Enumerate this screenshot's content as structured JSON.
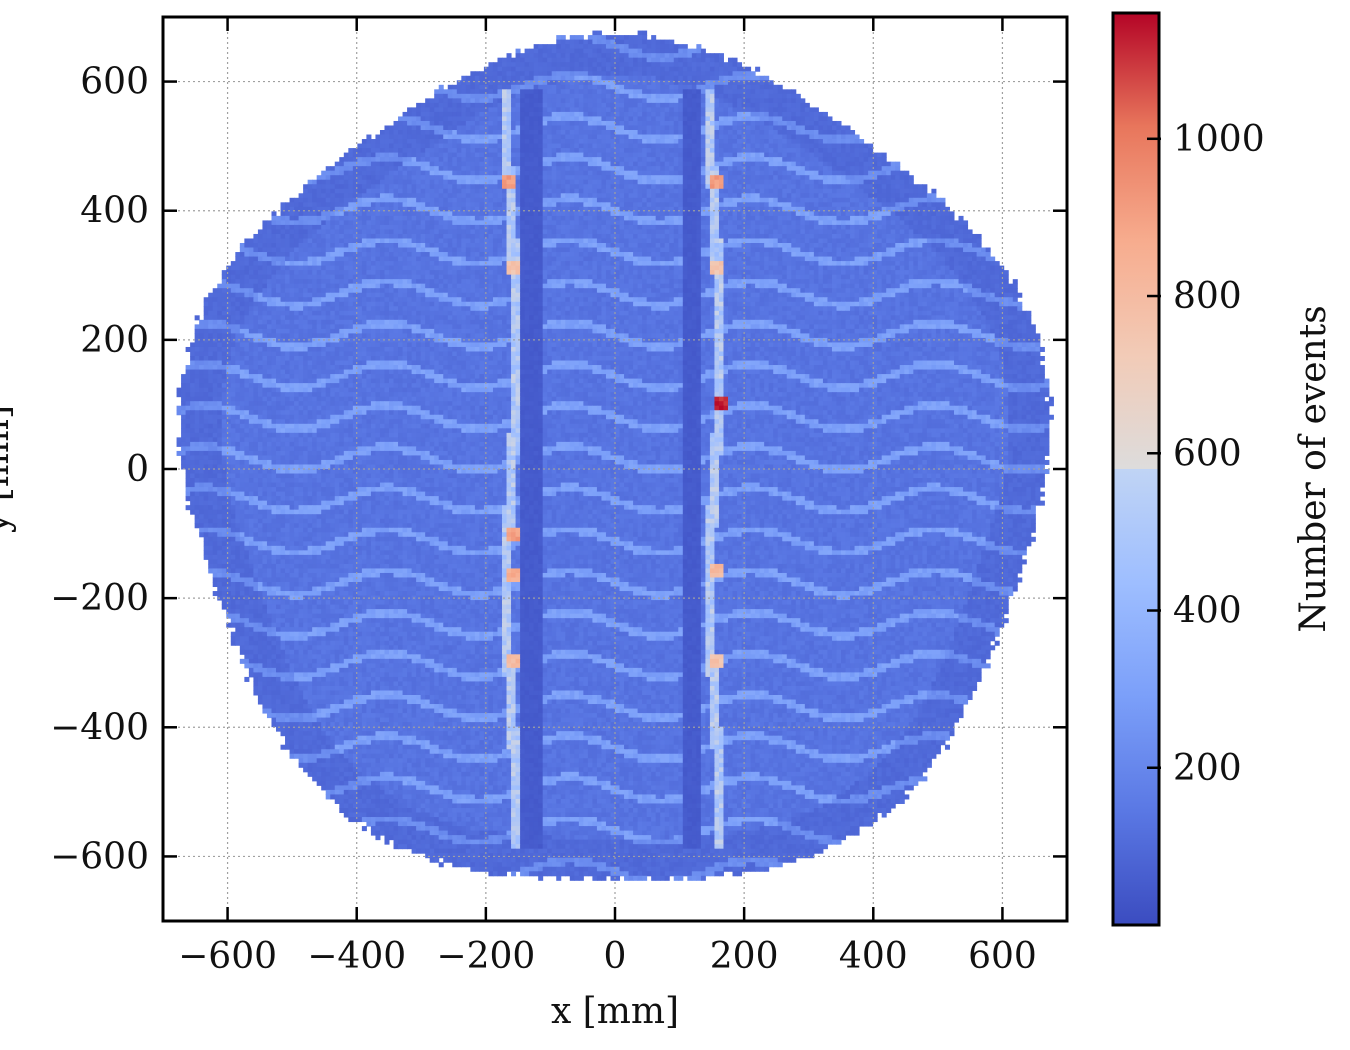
{
  "chart_data": {
    "type": "heatmap",
    "title": "",
    "xlabel": "x [mm]",
    "ylabel": "y [mm]",
    "xlim": [
      -700,
      700
    ],
    "ylim": [
      -700,
      700
    ],
    "xticks": [
      -600,
      -400,
      -200,
      0,
      200,
      400,
      600
    ],
    "yticks": [
      -600,
      -400,
      -200,
      0,
      200,
      400,
      600
    ],
    "xtick_labels": [
      "−600",
      "−400",
      "−200",
      "0",
      "200",
      "400",
      "600"
    ],
    "ytick_labels": [
      "−600",
      "−400",
      "−200",
      "0",
      "200",
      "400",
      "600"
    ],
    "grid": true,
    "colormap": "coolwarm",
    "colorbar": {
      "label": "Number of events",
      "range": [
        0,
        1160
      ],
      "ticks": [
        200,
        400,
        600,
        800,
        1000
      ],
      "tick_labels": [
        "200",
        "400",
        "600",
        "800",
        "1000"
      ]
    },
    "features": {
      "disk_radius_mm": 665,
      "background_events": 130,
      "horizontal_bands_events": 330,
      "vertical_gaps_center_x_mm": [
        -130,
        120
      ],
      "vertical_gap_width_mm": 30,
      "vertical_bright_lines_x_mm": [
        -160,
        155
      ],
      "bright_spot_events_max": 1160,
      "bright_spots": [
        {
          "x": -165,
          "y": 445,
          "events": 950
        },
        {
          "x": 155,
          "y": 445,
          "events": 950
        },
        {
          "x": -160,
          "y": 310,
          "events": 800
        },
        {
          "x": 160,
          "y": 310,
          "events": 800
        },
        {
          "x": 165,
          "y": 100,
          "events": 1160
        },
        {
          "x": -160,
          "y": -100,
          "events": 950
        },
        {
          "x": -160,
          "y": -165,
          "events": 900
        },
        {
          "x": 155,
          "y": -160,
          "events": 850
        },
        {
          "x": -160,
          "y": -300,
          "events": 850
        },
        {
          "x": 160,
          "y": -300,
          "events": 800
        }
      ]
    }
  }
}
